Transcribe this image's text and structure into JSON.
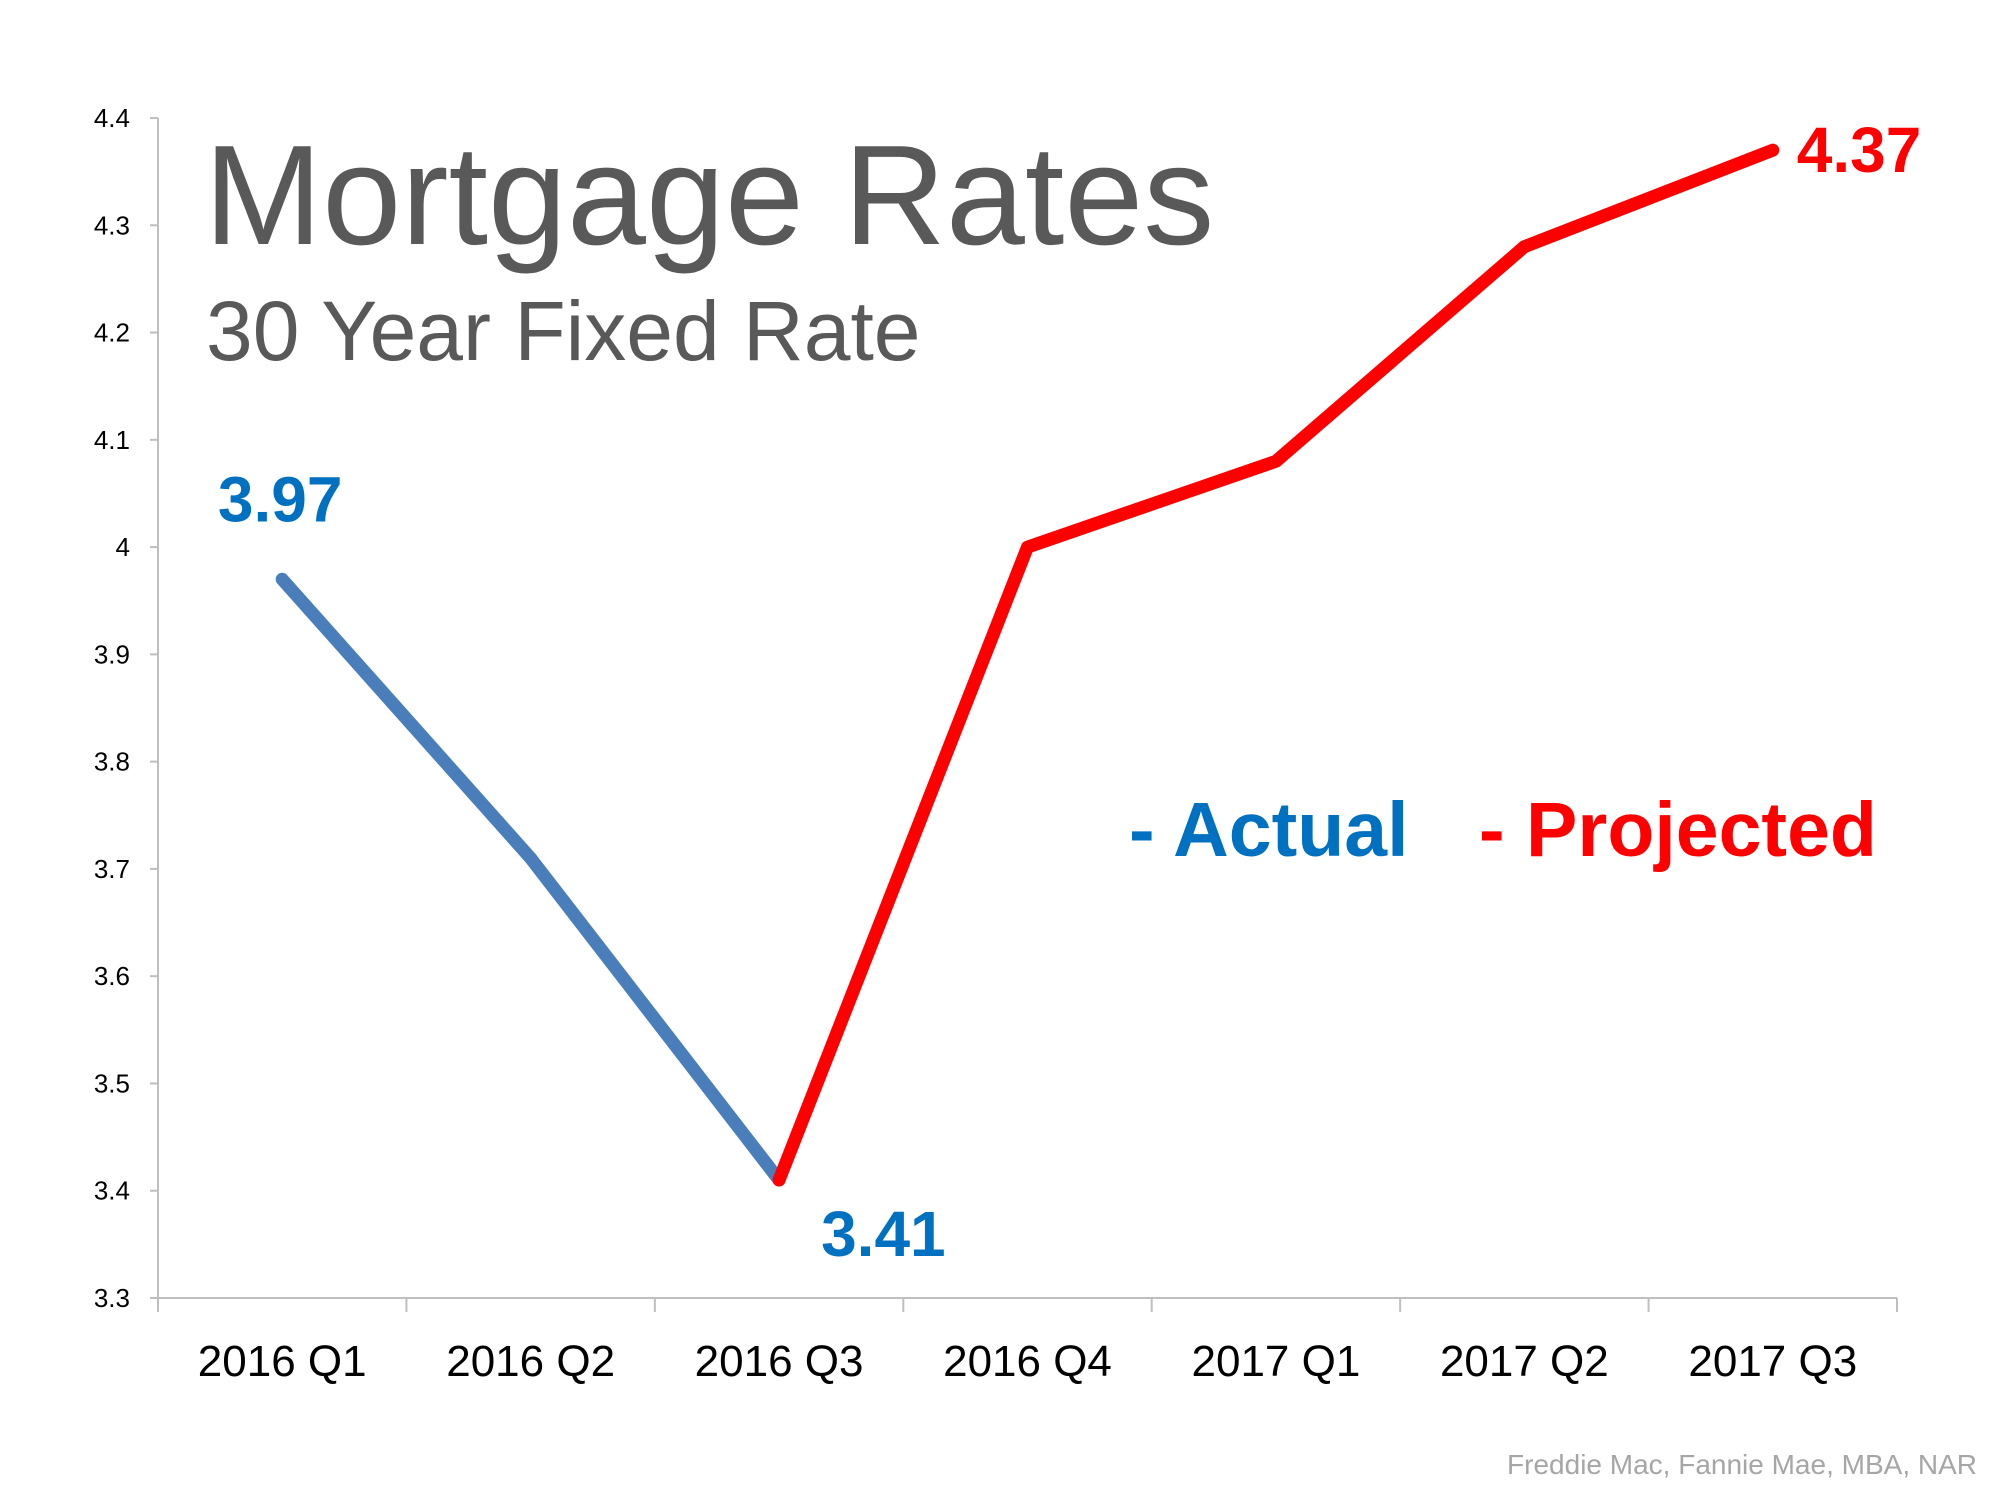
{
  "chart_data": {
    "type": "line",
    "title": "Mortgage Rates",
    "subtitle": "30 Year Fixed Rate",
    "source": "Freddie Mac, Fannie Mae, MBA, NAR",
    "categories": [
      "2016 Q1",
      "2016 Q2",
      "2016 Q3",
      "2016 Q4",
      "2017 Q1",
      "2017 Q2",
      "2017 Q3"
    ],
    "series": [
      {
        "name": "- Actual",
        "color": "#4a7ebb",
        "label_color": "#0070c0",
        "values": [
          3.97,
          3.71,
          3.41,
          null,
          null,
          null,
          null
        ],
        "value_labels": [
          "3.97",
          null,
          "3.41",
          null,
          null,
          null,
          null
        ]
      },
      {
        "name": "- Projected",
        "color": "#ff0000",
        "label_color": "#ff0000",
        "values": [
          null,
          null,
          3.41,
          4,
          4.08,
          4.28,
          4.37
        ],
        "value_labels": [
          null,
          null,
          null,
          null,
          null,
          null,
          "4.37"
        ]
      }
    ],
    "ylim": [
      3.3,
      4.4
    ],
    "yticks": [
      3.3,
      3.4,
      3.5,
      3.6,
      3.7,
      3.8,
      3.9,
      4,
      4.1,
      4.2,
      4.3,
      4.4
    ],
    "grid": false
  }
}
